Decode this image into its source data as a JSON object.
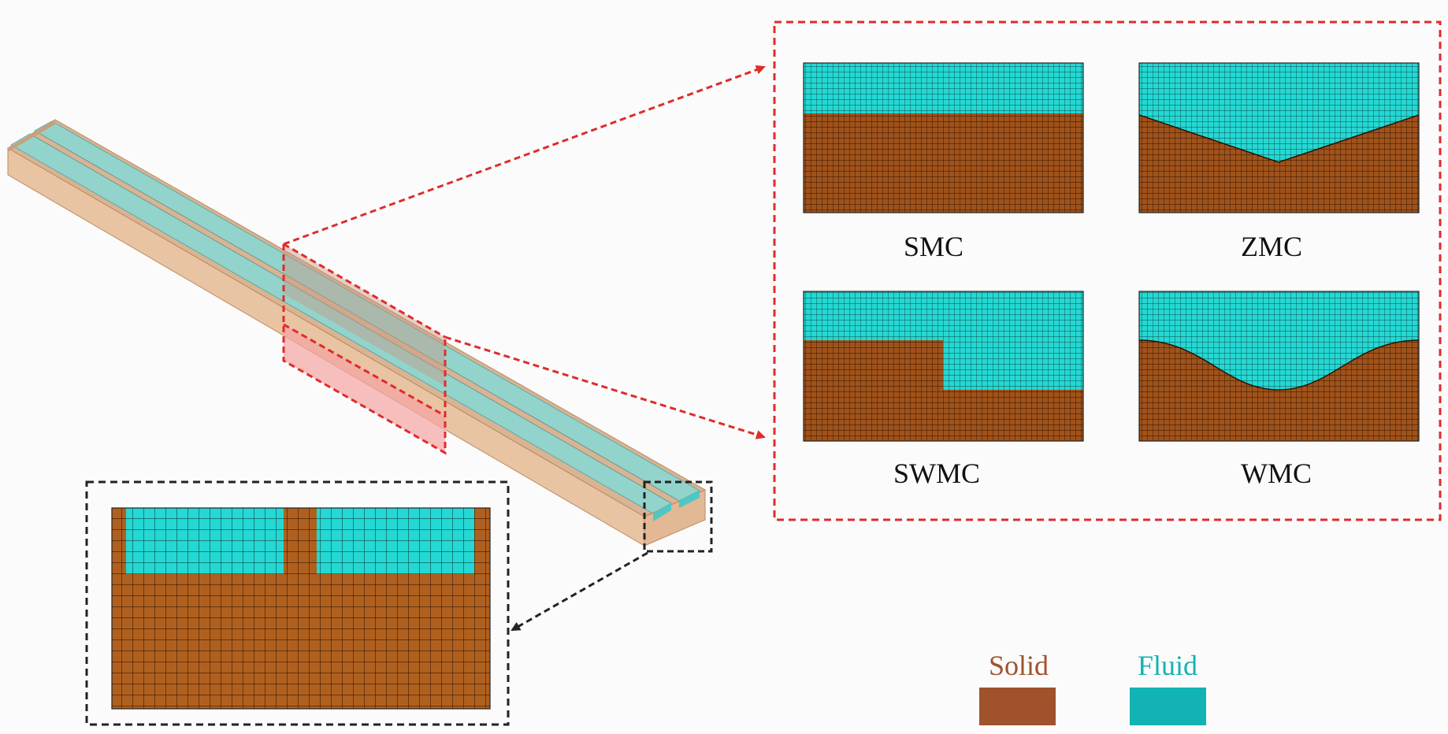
{
  "meshes": [
    {
      "id": "smc",
      "label": "SMC",
      "shape": "straight"
    },
    {
      "id": "zmc",
      "label": "ZMC",
      "shape": "zigzag"
    },
    {
      "id": "swmc",
      "label": "SWMC",
      "shape": "step"
    },
    {
      "id": "wmc",
      "label": "WMC",
      "shape": "wavy"
    }
  ],
  "legend": [
    {
      "id": "solid",
      "label": "Solid",
      "color": "#a0522d"
    },
    {
      "id": "fluid",
      "label": "Fluid",
      "color": "#13b3b3"
    }
  ],
  "colors": {
    "solid_mesh": "#a55a1c",
    "fluid_mesh": "#23d9d5",
    "grid_line": "#1a1a1a",
    "highlight_box": "#e02b2b",
    "zoom_box": "#222222"
  }
}
